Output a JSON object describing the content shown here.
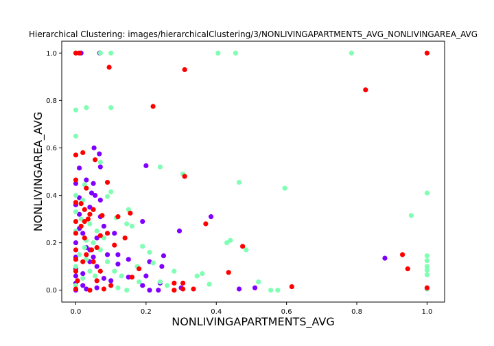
{
  "chart_data": {
    "type": "scatter",
    "title": "Hierarchical Clustering: images/hierarchicalClustering/3/NONLIVINGAPARTMENTS_AVG_NONLIVINGAREA_AVG",
    "xlabel": "NONLIVINGAPARTMENTS_AVG",
    "ylabel": "NONLIVINGAREA_AVG",
    "xlim": [
      -0.04,
      1.05
    ],
    "ylim": [
      -0.05,
      1.05
    ],
    "xticks": [
      0.0,
      0.2,
      0.4,
      0.6,
      0.8,
      1.0
    ],
    "yticks": [
      0.0,
      0.2,
      0.4,
      0.6,
      0.8,
      1.0
    ],
    "xtick_labels": [
      "0.0",
      "0.2",
      "0.4",
      "0.6",
      "0.8",
      "1.0"
    ],
    "ytick_labels": [
      "0.0",
      "0.2",
      "0.4",
      "0.6",
      "0.8",
      "1.0"
    ],
    "grid": false,
    "series": [
      {
        "color": "#8000ff",
        "points": [
          [
            0.015,
            1.0
          ],
          [
            0.068,
            1.0
          ],
          [
            0.052,
            0.6
          ],
          [
            0.067,
            0.575
          ],
          [
            0.07,
            0.52
          ],
          [
            0.01,
            0.515
          ],
          [
            0.2,
            0.525
          ],
          [
            0.03,
            0.465
          ],
          [
            0.05,
            0.45
          ],
          [
            0.0,
            0.45
          ],
          [
            0.045,
            0.41
          ],
          [
            0.055,
            0.4
          ],
          [
            0.01,
            0.39
          ],
          [
            0.07,
            0.38
          ],
          [
            0.04,
            0.35
          ],
          [
            0.0,
            0.36
          ],
          [
            0.01,
            0.32
          ],
          [
            0.08,
            0.27
          ],
          [
            0.385,
            0.31
          ],
          [
            0.19,
            0.29
          ],
          [
            0.295,
            0.25
          ],
          [
            0.11,
            0.24
          ],
          [
            0.02,
            0.24
          ],
          [
            0.06,
            0.22
          ],
          [
            0.0,
            0.2
          ],
          [
            0.03,
            0.18
          ],
          [
            0.09,
            0.15
          ],
          [
            0.0,
            0.14
          ],
          [
            0.25,
            0.145
          ],
          [
            0.12,
            0.15
          ],
          [
            0.04,
            0.12
          ],
          [
            0.21,
            0.12
          ],
          [
            0.15,
            0.13
          ],
          [
            0.12,
            0.11
          ],
          [
            0.06,
            0.1
          ],
          [
            0.0,
            0.09
          ],
          [
            0.245,
            0.1
          ],
          [
            0.02,
            0.07
          ],
          [
            0.2,
            0.06
          ],
          [
            0.15,
            0.055
          ],
          [
            0.1,
            0.04
          ],
          [
            0.0,
            0.03
          ],
          [
            0.24,
            0.03
          ],
          [
            0.02,
            0.02
          ],
          [
            0.06,
            0.01
          ],
          [
            0.19,
            0.02
          ],
          [
            0.21,
            0.0
          ],
          [
            0.235,
            0.0
          ],
          [
            0.3,
            0.01
          ],
          [
            0.465,
            0.005
          ],
          [
            0.51,
            0.01
          ],
          [
            0.88,
            0.135
          ],
          [
            1.0,
            0.005
          ],
          [
            0.0,
            0.0
          ],
          [
            0.03,
            0.005
          ],
          [
            0.08,
            0.05
          ],
          [
            0.0,
            0.06
          ],
          [
            0.04,
            0.17
          ],
          [
            0.07,
            0.31
          ],
          [
            0.01,
            0.26
          ],
          [
            0.05,
            0.14
          ]
        ]
      },
      {
        "color": "#80ffb4",
        "points": [
          [
            0.07,
            1.0
          ],
          [
            0.1,
            1.0
          ],
          [
            0.405,
            1.0
          ],
          [
            0.455,
            1.0
          ],
          [
            0.785,
            1.0
          ],
          [
            0.03,
            0.77
          ],
          [
            0.1,
            0.77
          ],
          [
            0.0,
            0.76
          ],
          [
            0.0,
            0.65
          ],
          [
            0.07,
            0.54
          ],
          [
            0.24,
            0.52
          ],
          [
            0.305,
            0.49
          ],
          [
            0.465,
            0.455
          ],
          [
            0.025,
            0.445
          ],
          [
            0.595,
            0.43
          ],
          [
            0.1,
            0.415
          ],
          [
            1.0,
            0.41
          ],
          [
            0.09,
            0.395
          ],
          [
            0.0,
            0.4
          ],
          [
            0.02,
            0.38
          ],
          [
            0.15,
            0.34
          ],
          [
            0.115,
            0.305
          ],
          [
            0.955,
            0.315
          ],
          [
            0.04,
            0.28
          ],
          [
            0.145,
            0.28
          ],
          [
            0.16,
            0.27
          ],
          [
            0.44,
            0.21
          ],
          [
            0.43,
            0.2
          ],
          [
            0.0,
            0.25
          ],
          [
            0.19,
            0.185
          ],
          [
            0.485,
            0.17
          ],
          [
            0.21,
            0.16
          ],
          [
            1.0,
            0.145
          ],
          [
            1.0,
            0.125
          ],
          [
            0.22,
            0.115
          ],
          [
            1.0,
            0.1
          ],
          [
            0.175,
            0.1
          ],
          [
            0.28,
            0.08
          ],
          [
            1.0,
            0.085
          ],
          [
            0.36,
            0.07
          ],
          [
            0.345,
            0.06
          ],
          [
            1.0,
            0.065
          ],
          [
            0.18,
            0.035
          ],
          [
            0.24,
            0.035
          ],
          [
            0.38,
            0.025
          ],
          [
            0.52,
            0.035
          ],
          [
            0.26,
            0.02
          ],
          [
            0.12,
            0.01
          ],
          [
            0.145,
            0.0
          ],
          [
            0.555,
            0.0
          ],
          [
            0.575,
            0.0
          ],
          [
            1.0,
            0.005
          ],
          [
            0.0,
            0.1
          ],
          [
            0.01,
            0.15
          ],
          [
            0.03,
            0.21
          ],
          [
            0.05,
            0.2
          ],
          [
            0.07,
            0.17
          ],
          [
            0.09,
            0.12
          ],
          [
            0.02,
            0.05
          ],
          [
            0.0,
            0.02
          ],
          [
            0.04,
            0.08
          ],
          [
            0.06,
            0.25
          ],
          [
            0.08,
            0.22
          ],
          [
            0.11,
            0.08
          ],
          [
            0.13,
            0.06
          ],
          [
            0.03,
            0.13
          ],
          [
            0.055,
            0.06
          ],
          [
            0.015,
            0.3
          ],
          [
            0.0,
            0.33
          ],
          [
            0.025,
            0.18
          ]
        ]
      },
      {
        "color": "#ff0000",
        "points": [
          [
            0.0,
            1.0
          ],
          [
            0.01,
            1.0
          ],
          [
            1.0,
            1.0
          ],
          [
            0.095,
            0.94
          ],
          [
            0.31,
            0.93
          ],
          [
            0.825,
            0.845
          ],
          [
            0.22,
            0.775
          ],
          [
            0.02,
            0.58
          ],
          [
            0.0,
            0.57
          ],
          [
            0.055,
            0.55
          ],
          [
            0.0,
            0.465
          ],
          [
            0.09,
            0.455
          ],
          [
            0.31,
            0.48
          ],
          [
            0.03,
            0.43
          ],
          [
            0.0,
            0.37
          ],
          [
            0.015,
            0.365
          ],
          [
            0.025,
            0.34
          ],
          [
            0.05,
            0.34
          ],
          [
            0.04,
            0.32
          ],
          [
            0.12,
            0.31
          ],
          [
            0.075,
            0.315
          ],
          [
            0.155,
            0.325
          ],
          [
            0.37,
            0.28
          ],
          [
            0.0,
            0.29
          ],
          [
            0.025,
            0.29
          ],
          [
            0.09,
            0.24
          ],
          [
            0.0,
            0.24
          ],
          [
            0.14,
            0.22
          ],
          [
            0.025,
            0.22
          ],
          [
            0.11,
            0.19
          ],
          [
            0.475,
            0.185
          ],
          [
            0.06,
            0.18
          ],
          [
            0.0,
            0.17
          ],
          [
            0.03,
            0.15
          ],
          [
            0.93,
            0.15
          ],
          [
            0.0,
            0.13
          ],
          [
            0.02,
            0.12
          ],
          [
            0.945,
            0.09
          ],
          [
            0.18,
            0.09
          ],
          [
            0.435,
            0.075
          ],
          [
            0.07,
            0.08
          ],
          [
            0.16,
            0.055
          ],
          [
            0.06,
            0.04
          ],
          [
            0.005,
            0.04
          ],
          [
            0.28,
            0.03
          ],
          [
            0.305,
            0.03
          ],
          [
            0.615,
            0.015
          ],
          [
            0.335,
            0.005
          ],
          [
            0.28,
            0.0
          ],
          [
            0.305,
            0.005
          ],
          [
            1.0,
            0.01
          ],
          [
            0.0,
            0.005
          ],
          [
            0.04,
            0.0
          ],
          [
            0.08,
            0.005
          ],
          [
            0.05,
            0.12
          ],
          [
            0.015,
            0.27
          ],
          [
            0.035,
            0.3
          ],
          [
            0.07,
            0.23
          ],
          [
            0.1,
            0.02
          ],
          [
            0.0,
            0.08
          ],
          [
            0.045,
            0.17
          ]
        ]
      }
    ]
  }
}
